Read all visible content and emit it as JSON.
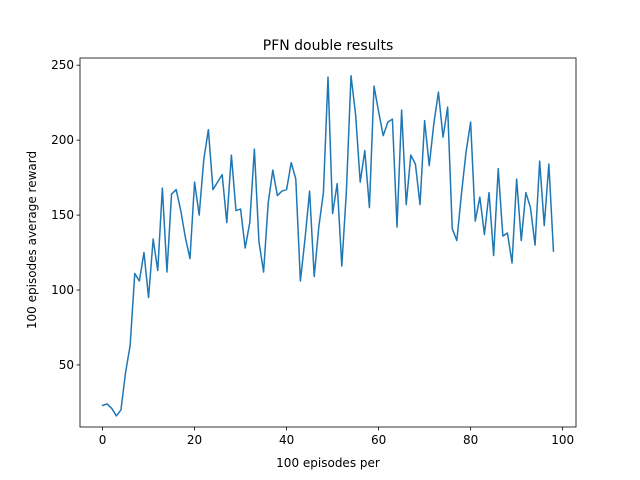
{
  "chart_data": {
    "type": "line",
    "title": "PFN double results",
    "xlabel": "100 episodes per",
    "ylabel": "100 episodes average reward",
    "xlim": [
      -4.9,
      102.9
    ],
    "ylim": [
      8.6,
      254.8
    ],
    "xticks": [
      0,
      20,
      40,
      60,
      80,
      100
    ],
    "yticks": [
      50,
      100,
      150,
      200,
      250
    ],
    "grid": false,
    "series": [
      {
        "color": "#1f77b4",
        "x": [
          0,
          1,
          2,
          3,
          4,
          5,
          6,
          7,
          8,
          9,
          10,
          11,
          12,
          13,
          14,
          15,
          16,
          17,
          18,
          19,
          20,
          21,
          22,
          23,
          24,
          25,
          26,
          27,
          28,
          29,
          30,
          31,
          32,
          33,
          34,
          35,
          36,
          37,
          38,
          39,
          40,
          41,
          42,
          43,
          44,
          45,
          46,
          47,
          48,
          49,
          50,
          51,
          52,
          53,
          54,
          55,
          56,
          57,
          58,
          59,
          60,
          61,
          62,
          63,
          64,
          65,
          66,
          67,
          68,
          69,
          70,
          71,
          72,
          73,
          74,
          75,
          76,
          77,
          78,
          79,
          80,
          81,
          82,
          83,
          84,
          85,
          86,
          87,
          88,
          89,
          90,
          91,
          92,
          93,
          94,
          95,
          96,
          97,
          98
        ],
        "y": [
          23,
          24,
          21,
          16,
          20,
          45,
          63,
          111,
          106,
          125,
          95,
          134,
          113,
          168,
          112,
          164,
          167,
          153,
          135,
          121,
          172,
          150,
          187,
          207,
          167,
          172,
          177,
          145,
          190,
          153,
          154,
          128,
          145,
          194,
          132,
          112,
          158,
          180,
          163,
          166,
          167,
          185,
          174,
          106,
          134,
          166,
          109,
          142,
          165,
          242,
          151,
          171,
          116,
          166,
          243,
          217,
          172,
          193,
          155,
          236,
          219,
          203,
          212,
          214,
          142,
          220,
          157,
          190,
          184,
          157,
          213,
          183,
          211,
          232,
          202,
          222,
          141,
          133,
          164,
          192,
          212,
          146,
          162,
          137,
          165,
          123,
          181,
          136,
          138,
          118,
          174,
          133,
          165,
          155,
          130,
          186,
          143,
          184,
          126
        ]
      }
    ]
  }
}
